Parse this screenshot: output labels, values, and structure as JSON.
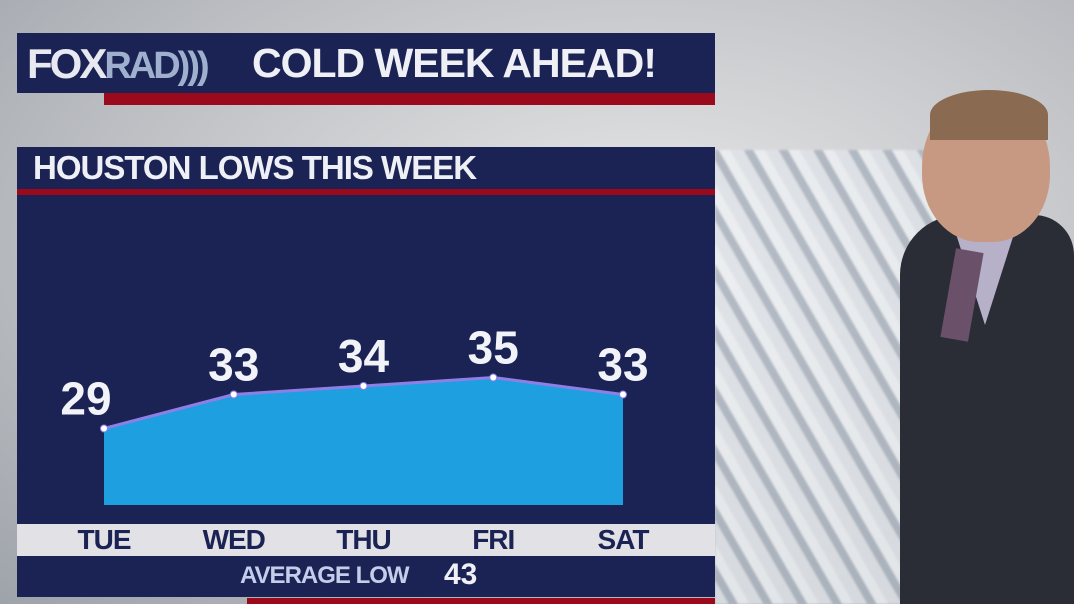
{
  "header": {
    "logo": "FOX",
    "logo_suffix": "RAD",
    "title": "COLD WEEK AHEAD!"
  },
  "chart_data": {
    "type": "area",
    "title": "HOUSTON LOWS THIS WEEK",
    "categories": [
      "TUE",
      "WED",
      "THU",
      "FRI",
      "SAT"
    ],
    "values": [
      29,
      33,
      34,
      35,
      33
    ],
    "ylim": [
      20,
      55
    ],
    "grid": false,
    "colors": {
      "fill": "#1e9fe0",
      "line": "#8e7fe6",
      "background": "#1a2353"
    }
  },
  "footer": {
    "average_label": "AVERAGE LOW",
    "average_value": "43"
  }
}
